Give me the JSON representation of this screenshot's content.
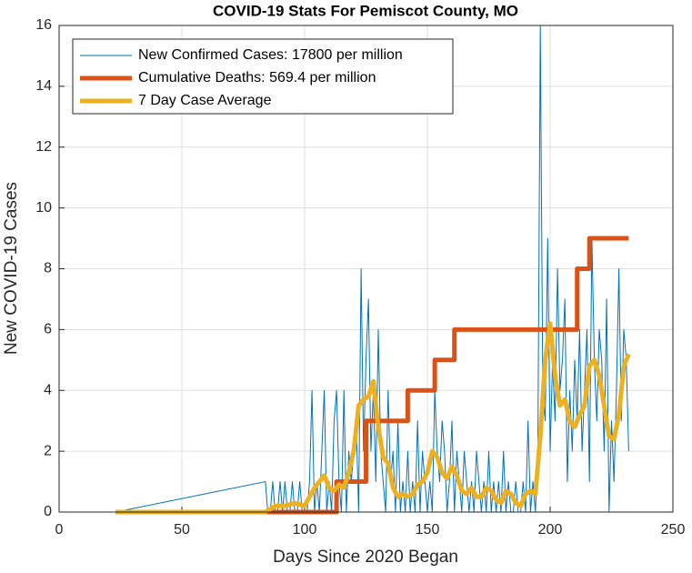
{
  "chart_data": {
    "type": "line",
    "title": "COVID-19 Stats For Pemiscot County, MO",
    "xlabel": "Days Since 2020 Began",
    "ylabel": "New COVID-19 Cases",
    "xlim": [
      0,
      250
    ],
    "xticks": [
      0,
      50,
      100,
      150,
      200,
      250
    ],
    "ylim": [
      0,
      16
    ],
    "yticks": [
      0,
      2,
      4,
      6,
      8,
      10,
      12,
      14,
      16
    ],
    "grid": true,
    "legend": "northwest",
    "series": [
      {
        "name": "New Confirmed Cases: 17800 per million",
        "color": "#0072bd",
        "width": 1,
        "x": [
          23,
          84,
          85,
          86,
          87,
          88,
          89,
          90,
          91,
          92,
          93,
          94,
          95,
          96,
          97,
          98,
          99,
          100,
          101,
          102,
          103,
          104,
          105,
          106,
          107,
          108,
          109,
          110,
          111,
          112,
          113,
          114,
          115,
          116,
          117,
          118,
          119,
          120,
          121,
          122,
          123,
          124,
          125,
          126,
          127,
          128,
          129,
          130,
          131,
          132,
          133,
          134,
          135,
          136,
          137,
          138,
          139,
          140,
          141,
          142,
          143,
          144,
          145,
          146,
          147,
          148,
          149,
          150,
          151,
          152,
          153,
          154,
          155,
          156,
          157,
          158,
          159,
          160,
          161,
          162,
          163,
          164,
          165,
          166,
          167,
          168,
          169,
          170,
          171,
          172,
          173,
          174,
          175,
          176,
          177,
          178,
          179,
          180,
          181,
          182,
          183,
          184,
          185,
          186,
          187,
          188,
          189,
          190,
          191,
          192,
          193,
          194,
          195,
          196,
          197,
          198,
          199,
          200,
          201,
          202,
          203,
          204,
          205,
          206,
          207,
          208,
          209,
          210,
          211,
          212,
          213,
          214,
          215,
          216,
          217,
          218,
          219,
          220,
          221,
          222,
          223,
          224,
          225,
          226,
          227,
          228,
          229,
          230,
          231,
          232
        ],
        "values": [
          0,
          1,
          0,
          0,
          1,
          0,
          0,
          1,
          0,
          1,
          0,
          0,
          1,
          0,
          0,
          1,
          0,
          0,
          0,
          1,
          4,
          0,
          1,
          0,
          2,
          4,
          0,
          1,
          0,
          3,
          4,
          1,
          0,
          4,
          0,
          2,
          1,
          2,
          3,
          0,
          8,
          2,
          5,
          7,
          2,
          4,
          1,
          6,
          2,
          1,
          0,
          4,
          1,
          2,
          0,
          3,
          0,
          1,
          0,
          2,
          0,
          1,
          0,
          3,
          0,
          2,
          1,
          0,
          1,
          0,
          4,
          2,
          1,
          3,
          2,
          0,
          1,
          3,
          0,
          2,
          1,
          0,
          2,
          1,
          0,
          1,
          0,
          2,
          1,
          0,
          1,
          0,
          2,
          0,
          1,
          0,
          1,
          0,
          2,
          0,
          1,
          0,
          0,
          1,
          0,
          0,
          1,
          0,
          3,
          0,
          1,
          0,
          2,
          16,
          4,
          3,
          9,
          2,
          5,
          3,
          8,
          4,
          5,
          7,
          1,
          4,
          2,
          5,
          3,
          6,
          2,
          4,
          6,
          1,
          9,
          5,
          3,
          6,
          5,
          2,
          7,
          0,
          3,
          1,
          4,
          8,
          3,
          6,
          5,
          2
        ]
      },
      {
        "name": "Cumulative Deaths: 569.4 per million",
        "color": "#d95319",
        "width": 5,
        "x": [
          23,
          113,
          113,
          125,
          125,
          142,
          142,
          153,
          153,
          161,
          161,
          211,
          211,
          216,
          216,
          232
        ],
        "values": [
          0,
          0,
          1,
          1,
          3,
          3,
          4,
          4,
          5,
          5,
          6,
          6,
          8,
          8,
          9,
          9
        ]
      },
      {
        "name": "7 Day Case Average",
        "color": "#edb120",
        "width": 5,
        "x": [
          23,
          84,
          88,
          92,
          96,
          100,
          104,
          106,
          108,
          110,
          112,
          114,
          116,
          118,
          120,
          122,
          124,
          126,
          128,
          130,
          132,
          134,
          136,
          138,
          140,
          142,
          144,
          146,
          148,
          150,
          152,
          154,
          156,
          158,
          160,
          162,
          164,
          166,
          168,
          170,
          172,
          174,
          176,
          178,
          180,
          182,
          184,
          186,
          188,
          190,
          192,
          194,
          196,
          198,
          200,
          202,
          204,
          206,
          208,
          210,
          212,
          214,
          216,
          218,
          220,
          222,
          224,
          226,
          228,
          230,
          232
        ],
        "values": [
          0,
          0,
          0.2,
          0.2,
          0.3,
          0.2,
          0.8,
          1,
          1.2,
          0.8,
          0.7,
          0.9,
          0.8,
          1.3,
          2,
          3.5,
          3.7,
          3.8,
          4.3,
          2.8,
          1.8,
          1.6,
          0.8,
          0.5,
          0.6,
          0.5,
          0.6,
          0.9,
          1,
          1.3,
          2,
          1.8,
          1.3,
          1.1,
          1.5,
          1.2,
          0.7,
          0.6,
          0.8,
          0.5,
          0.5,
          0.8,
          0.7,
          0.4,
          0.3,
          0.7,
          0.6,
          0.3,
          0.2,
          0.6,
          0.7,
          0.6,
          2.5,
          5,
          6.2,
          4.5,
          3.5,
          3.7,
          3,
          2.8,
          3.2,
          3.5,
          4.8,
          5,
          4.5,
          3.5,
          2.5,
          2.4,
          3.2,
          4.8,
          5.2
        ]
      }
    ]
  }
}
